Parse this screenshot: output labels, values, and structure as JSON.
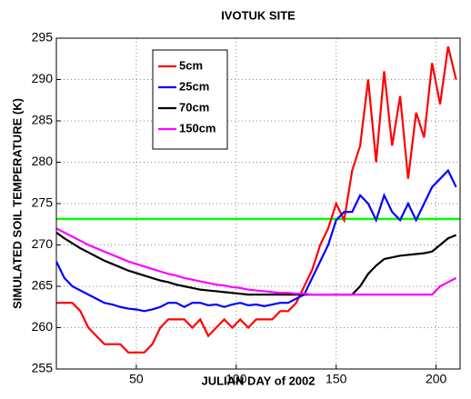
{
  "chart_data": {
    "type": "line",
    "title": "IVOTUK SITE",
    "x_label": "JULIAN DAY of 2002",
    "y_label": "SIMULATED SOIL TEMPERATURE (K)",
    "x": [
      10,
      14,
      18,
      22,
      26,
      30,
      34,
      38,
      42,
      46,
      50,
      54,
      58,
      62,
      66,
      70,
      74,
      78,
      82,
      86,
      90,
      94,
      98,
      102,
      106,
      110,
      114,
      118,
      122,
      126,
      130,
      134,
      138,
      142,
      146,
      150,
      154,
      158,
      162,
      166,
      170,
      174,
      178,
      182,
      186,
      190,
      194,
      198,
      202,
      206,
      210
    ],
    "series": [
      {
        "name": "5cm",
        "color": "#ff0000",
        "values": [
          263,
          263,
          263,
          262,
          260,
          259,
          258,
          258,
          258,
          257,
          257,
          257,
          258,
          260,
          261,
          261,
          261,
          260,
          261,
          259,
          260,
          261,
          260,
          261,
          260,
          261,
          261,
          261,
          262,
          262,
          263,
          265,
          267,
          270,
          272,
          275,
          273,
          279,
          282,
          290,
          280,
          291,
          282,
          288,
          278,
          286,
          283,
          292,
          287,
          294,
          290
        ]
      },
      {
        "name": "25cm",
        "color": "#0000ff",
        "values": [
          268,
          266,
          265,
          264.5,
          264,
          263.5,
          263,
          262.8,
          262.5,
          262.3,
          262.2,
          262,
          262.2,
          262.5,
          263,
          263,
          262.5,
          263,
          263,
          262.7,
          262.8,
          262.5,
          262.8,
          263,
          262.7,
          262.8,
          262.6,
          262.8,
          263,
          263,
          263.5,
          264,
          266,
          268,
          270,
          273,
          274,
          274,
          276,
          275,
          273,
          276,
          274,
          273,
          275,
          273,
          275,
          277,
          278,
          279,
          277
        ]
      },
      {
        "name": "70cm",
        "color": "#000000",
        "values": [
          271.5,
          270.8,
          270.2,
          269.6,
          269.1,
          268.6,
          268.1,
          267.7,
          267.3,
          266.9,
          266.6,
          266.3,
          266,
          265.7,
          265.5,
          265.2,
          265,
          264.8,
          264.6,
          264.5,
          264.4,
          264.3,
          264.2,
          264.1,
          264,
          264,
          264,
          264,
          264,
          264,
          264,
          264,
          264,
          264,
          264,
          264,
          264,
          264,
          265,
          266.5,
          267.5,
          268.3,
          268.5,
          268.7,
          268.8,
          268.9,
          269,
          269.2,
          270,
          270.8,
          271.2
        ]
      },
      {
        "name": "150cm",
        "color": "#ff00ff",
        "values": [
          272,
          271.5,
          271,
          270.5,
          270,
          269.6,
          269.2,
          268.8,
          268.4,
          268,
          267.7,
          267.4,
          267.1,
          266.8,
          266.5,
          266.3,
          266,
          265.8,
          265.6,
          265.4,
          265.2,
          265.1,
          264.9,
          264.8,
          264.6,
          264.5,
          264.4,
          264.3,
          264.2,
          264.2,
          264.1,
          264.1,
          264,
          264,
          264,
          264,
          264,
          264,
          264,
          264,
          264,
          264,
          264,
          264,
          264,
          264,
          264,
          264,
          265,
          265.5,
          266
        ]
      }
    ],
    "hlines": [
      {
        "value": 273.15,
        "color": "#00ff00"
      }
    ],
    "xlim": [
      10,
      212
    ],
    "xticks": [
      50,
      100,
      150,
      200
    ],
    "ylim": [
      255,
      295
    ],
    "yticks": [
      255,
      260,
      265,
      270,
      275,
      280,
      285,
      290,
      295
    ],
    "grid": true,
    "legend": "upper left"
  }
}
